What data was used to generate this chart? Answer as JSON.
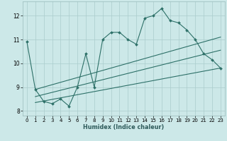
{
  "title": "",
  "xlabel": "Humidex (Indice chaleur)",
  "bg_color": "#cce8e8",
  "grid_color": "#aacccc",
  "line_color": "#2d7068",
  "xlim": [
    -0.5,
    23.5
  ],
  "ylim": [
    7.8,
    12.6
  ],
  "xticks": [
    0,
    1,
    2,
    3,
    4,
    5,
    6,
    7,
    8,
    9,
    10,
    11,
    12,
    13,
    14,
    15,
    16,
    17,
    18,
    19,
    20,
    21,
    22,
    23
  ],
  "yticks": [
    8,
    9,
    10,
    11,
    12
  ],
  "series1_x": [
    0,
    1,
    2,
    3,
    4,
    5,
    6,
    7,
    8,
    9,
    10,
    11,
    12,
    13,
    14,
    15,
    16,
    17,
    18,
    19,
    20,
    21,
    22,
    23
  ],
  "series1_y": [
    10.9,
    8.9,
    8.4,
    8.3,
    8.5,
    8.2,
    9.0,
    10.4,
    9.0,
    11.0,
    11.3,
    11.3,
    11.0,
    10.8,
    11.9,
    12.0,
    12.3,
    11.8,
    11.7,
    11.4,
    11.0,
    10.4,
    10.15,
    9.8
  ],
  "series2_x": [
    1,
    23
  ],
  "series2_y": [
    8.35,
    9.8
  ],
  "series3_x": [
    1,
    23
  ],
  "series3_y": [
    8.6,
    10.55
  ],
  "series4_x": [
    1,
    23
  ],
  "series4_y": [
    8.9,
    11.1
  ]
}
